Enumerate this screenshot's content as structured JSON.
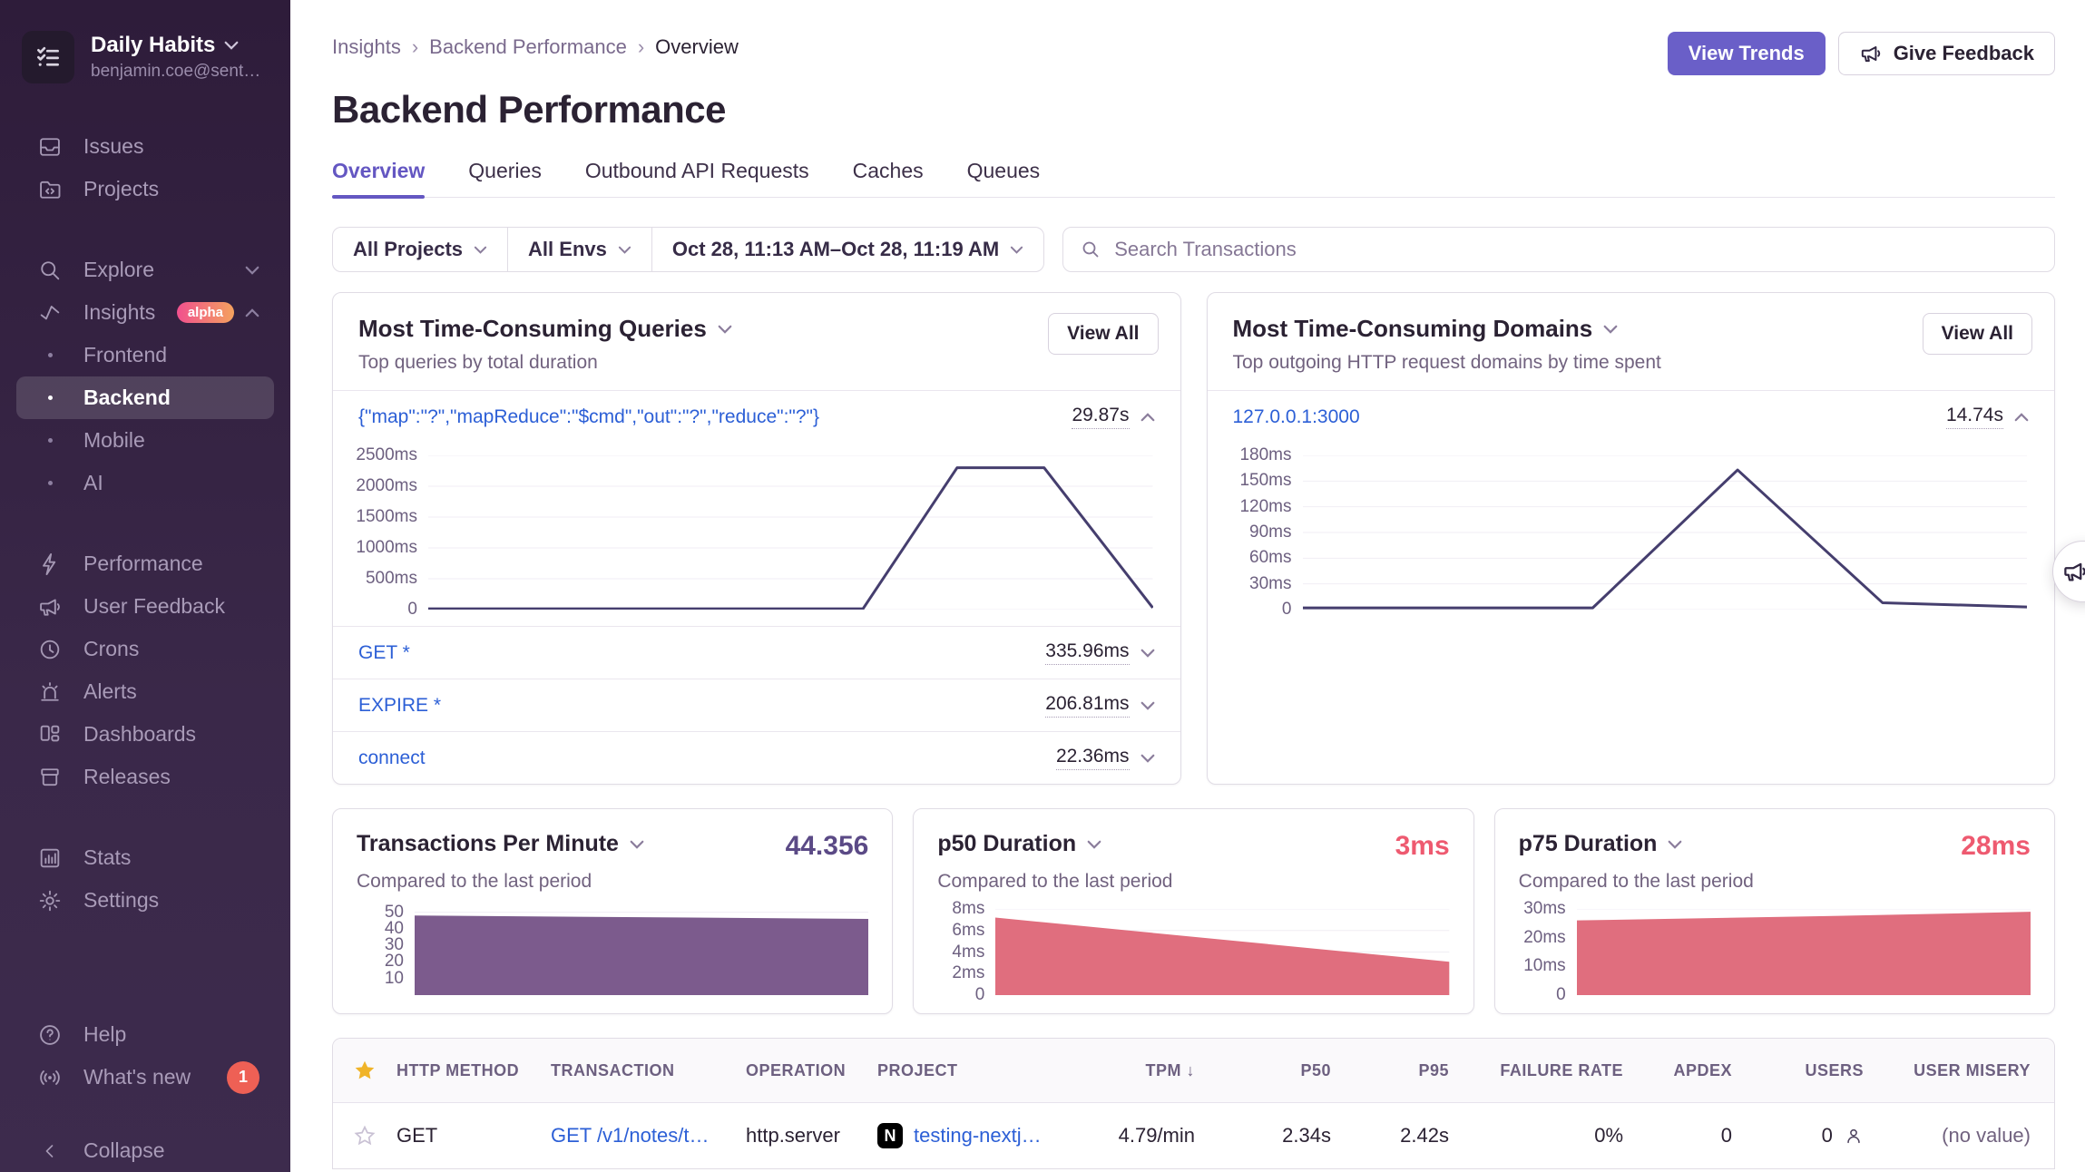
{
  "colors": {
    "accent_purple": "#6a5fc8",
    "sidebar_bg_top": "#2e1c3a",
    "sidebar_bg_bottom": "#3d2b4d",
    "link_blue": "#2c5fd6",
    "line_navy": "#453e6e",
    "area_purple": "#7c5b8d",
    "area_red": "#e06e7e",
    "value_purple": "#5b4a86",
    "value_red": "#ee5a70",
    "alpha_badge_gradient": [
      "#f1508e",
      "#f4a25e"
    ],
    "notification_red": "#ee6055"
  },
  "sidebar": {
    "org": {
      "name": "Daily Habits",
      "email": "benjamin.coe@sent…"
    },
    "primary": [
      {
        "label": "Issues"
      },
      {
        "label": "Projects"
      }
    ],
    "explore": {
      "label": "Explore"
    },
    "insights": {
      "label": "Insights",
      "badge": "alpha"
    },
    "insights_children": [
      {
        "label": "Frontend"
      },
      {
        "label": "Backend",
        "active": true
      },
      {
        "label": "Mobile"
      },
      {
        "label": "AI"
      }
    ],
    "secondary": [
      {
        "label": "Performance"
      },
      {
        "label": "User Feedback"
      },
      {
        "label": "Crons"
      },
      {
        "label": "Alerts"
      },
      {
        "label": "Dashboards"
      },
      {
        "label": "Releases"
      }
    ],
    "tertiary": [
      {
        "label": "Stats"
      },
      {
        "label": "Settings"
      }
    ],
    "footer": [
      {
        "label": "Help"
      },
      {
        "label": "What's new",
        "badge": "1"
      }
    ],
    "collapse": "Collapse"
  },
  "header": {
    "breadcrumb": [
      "Insights",
      "Backend Performance",
      "Overview"
    ],
    "title": "Backend Performance",
    "view_trends": "View Trends",
    "give_feedback": "Give Feedback"
  },
  "tabs": [
    {
      "label": "Overview",
      "active": true
    },
    {
      "label": "Queries"
    },
    {
      "label": "Outbound API Requests"
    },
    {
      "label": "Caches"
    },
    {
      "label": "Queues"
    }
  ],
  "filters": {
    "projects": "All Projects",
    "envs": "All Envs",
    "date_range": "Oct 28, 11:13 AM–Oct 28, 11:19 AM",
    "search_placeholder": "Search Transactions"
  },
  "queries_card": {
    "title": "Most Time-Consuming Queries",
    "subtitle": "Top queries by total duration",
    "view_all": "View All",
    "top": {
      "label": "{\"map\":\"?\",\"mapReduce\":\"$cmd\",\"out\":\"?\",\"reduce\":\"?\"}",
      "value": "29.87s"
    },
    "items": [
      {
        "label": "GET *",
        "value": "335.96ms"
      },
      {
        "label": "EXPIRE *",
        "value": "206.81ms"
      },
      {
        "label": "connect",
        "value": "22.36ms"
      }
    ]
  },
  "domains_card": {
    "title": "Most Time-Consuming Domains",
    "subtitle": "Top outgoing HTTP request domains by time spent",
    "view_all": "View All",
    "top": {
      "label": "127.0.0.1:3000",
      "value": "14.74s"
    }
  },
  "metric_cards": [
    {
      "title": "Transactions Per Minute",
      "value": "44.356",
      "subtitle": "Compared to the last period"
    },
    {
      "title": "p50 Duration",
      "value": "3ms",
      "subtitle": "Compared to the last period"
    },
    {
      "title": "p75 Duration",
      "value": "28ms",
      "subtitle": "Compared to the last period"
    }
  ],
  "table": {
    "columns": [
      "HTTP METHOD",
      "TRANSACTION",
      "OPERATION",
      "PROJECT",
      "TPM",
      "P50",
      "P95",
      "FAILURE RATE",
      "APDEX",
      "USERS",
      "USER MISERY"
    ],
    "sorted_column": "TPM",
    "rows": [
      {
        "starred": false,
        "method": "GET",
        "transaction": "GET /v1/notes/t…",
        "operation": "http.server",
        "project_initial": "N",
        "project": "testing-nextj…",
        "tpm": "4.79/min",
        "p50": "2.34s",
        "p95": "2.42s",
        "failure_rate": "0%",
        "apdex": "0",
        "users": "0",
        "user_misery": "(no value)"
      }
    ]
  },
  "chart_data": [
    {
      "id": "queries_trend",
      "type": "line",
      "title": "Most Time-Consuming Queries trend",
      "series_label": "{\"map\":\"?\",\"mapReduce\":\"$cmd\",\"out\":\"?\",\"reduce\":\"?\"}",
      "unit": "ms",
      "ymax": 2500,
      "yticks": [
        {
          "v": 2500,
          "label": "2500ms"
        },
        {
          "v": 2000,
          "label": "2000ms"
        },
        {
          "v": 1500,
          "label": "1500ms"
        },
        {
          "v": 1000,
          "label": "1000ms"
        },
        {
          "v": 500,
          "label": "500ms"
        },
        {
          "v": 0,
          "label": "0"
        }
      ],
      "x": [
        0,
        0.6,
        0.73,
        0.85,
        1
      ],
      "y": [
        12,
        12,
        2300,
        2300,
        30
      ],
      "color": "#453e6e"
    },
    {
      "id": "domains_trend",
      "type": "line",
      "title": "Most Time-Consuming Domains trend",
      "series_label": "127.0.0.1:3000",
      "unit": "ms",
      "ymax": 180,
      "yticks": [
        {
          "v": 180,
          "label": "180ms"
        },
        {
          "v": 150,
          "label": "150ms"
        },
        {
          "v": 120,
          "label": "120ms"
        },
        {
          "v": 90,
          "label": "90ms"
        },
        {
          "v": 60,
          "label": "60ms"
        },
        {
          "v": 30,
          "label": "30ms"
        },
        {
          "v": 0,
          "label": "0"
        }
      ],
      "x": [
        0,
        0.4,
        0.6,
        0.8,
        1
      ],
      "y": [
        2,
        2,
        163,
        8,
        3
      ],
      "color": "#453e6e"
    },
    {
      "id": "tpm_trend",
      "type": "area",
      "title": "Transactions Per Minute",
      "current_value": 44.356,
      "ymax": 52,
      "yticks": [
        {
          "v": 50,
          "label": "50"
        },
        {
          "v": 40,
          "label": "40"
        },
        {
          "v": 30,
          "label": "30"
        },
        {
          "v": 20,
          "label": "20"
        },
        {
          "v": 10,
          "label": "10"
        }
      ],
      "x": [
        0,
        0.5,
        1
      ],
      "y": [
        48,
        47,
        46
      ],
      "color": "#7c5b8d"
    },
    {
      "id": "p50_trend",
      "type": "area",
      "title": "p50 Duration",
      "current_value": "3ms",
      "ymax": 8,
      "yticks": [
        {
          "v": 8,
          "label": "8ms"
        },
        {
          "v": 6,
          "label": "6ms"
        },
        {
          "v": 4,
          "label": "4ms"
        },
        {
          "v": 2,
          "label": "2ms"
        },
        {
          "v": 0,
          "label": "0"
        }
      ],
      "x": [
        0,
        1
      ],
      "y": [
        7.2,
        3.1
      ],
      "color": "#e06e7e"
    },
    {
      "id": "p75_trend",
      "type": "area",
      "title": "p75 Duration",
      "current_value": "28ms",
      "ymax": 30,
      "yticks": [
        {
          "v": 30,
          "label": "30ms"
        },
        {
          "v": 20,
          "label": "20ms"
        },
        {
          "v": 10,
          "label": "10ms"
        },
        {
          "v": 0,
          "label": "0"
        }
      ],
      "x": [
        0,
        0.55,
        1
      ],
      "y": [
        26,
        27.5,
        29
      ],
      "color": "#e06e7e"
    }
  ]
}
